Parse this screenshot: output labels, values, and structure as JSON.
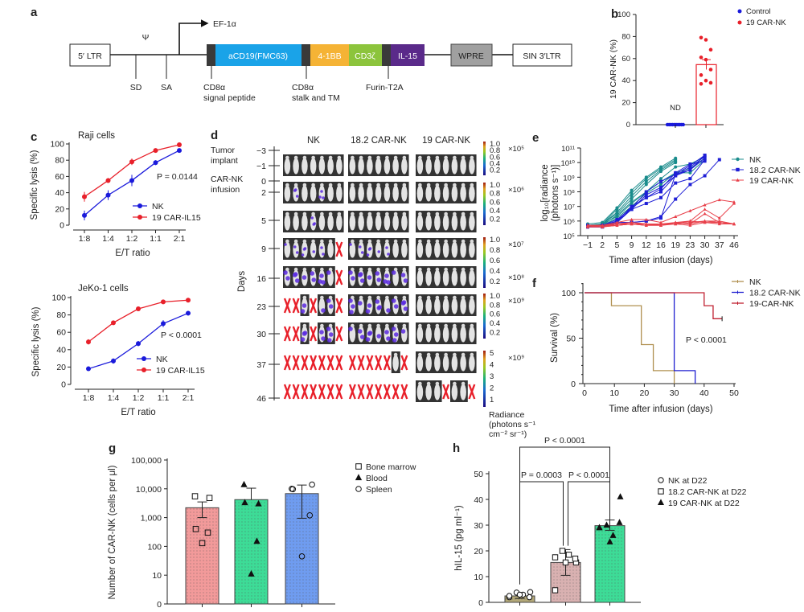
{
  "panel_labels": {
    "a": "a",
    "b": "b",
    "c": "c",
    "d": "d",
    "e": "e",
    "f": "f",
    "g": "g",
    "h": "h"
  },
  "construct": {
    "ltr5": "5′ LTR",
    "psi": "Ψ",
    "promoter": "EF-1α",
    "sd": "SD",
    "sa": "SA",
    "cd19": "aCD19(FMC63)",
    "bb": "4-1BB",
    "cd3z": "CD3ζ",
    "il15": "IL-15",
    "wpre": "WPRE",
    "ltr3": "SIN 3′LTR",
    "sig1": "CD8α",
    "sig2": "signal peptide",
    "stalk1": "CD8α",
    "stalk2": "stalk and TM",
    "furin": "Furin-T2A",
    "colors": {
      "cd19": "#1aa3e8",
      "bb": "#f5b335",
      "cd3z": "#8cc43c",
      "il15": "#5a2a8a",
      "dark": "#3a3a3a",
      "wpre": "#a0a0a0"
    }
  },
  "chart_data": [
    {
      "type": "bar",
      "ylabel": "19 CAR-NK (%)",
      "ylim": [
        0,
        100
      ],
      "yticks": [
        "0",
        "20",
        "40",
        "60",
        "80",
        "100"
      ],
      "categories": [
        "Control",
        "19 CAR-NK"
      ],
      "values": [
        0,
        54.5
      ],
      "sem": [
        0,
        4.5
      ],
      "points": [
        [
          0,
          0,
          0,
          0,
          0,
          0,
          0,
          0,
          0,
          0
        ],
        [
          79,
          77,
          68,
          61,
          59,
          50,
          45,
          40,
          38,
          37
        ]
      ],
      "annotation": "ND",
      "legend": [
        {
          "name": "Control",
          "color": "#1a1adb"
        },
        {
          "name": "19 CAR-NK",
          "color": "#e8202a"
        }
      ]
    },
    {
      "type": "line",
      "title": "Raji cells",
      "xlabel": "E/T ratio",
      "ylabel": "Specific lysis (%)",
      "ylim": [
        0,
        100
      ],
      "yticks": [
        "0",
        "20",
        "40",
        "60",
        "80",
        "100"
      ],
      "x": [
        "1:8",
        "1:4",
        "1:2",
        "1:1",
        "2:1"
      ],
      "series": [
        {
          "name": "NK",
          "color": "#1a1adb",
          "values": [
            12,
            37,
            55,
            77,
            92
          ],
          "err": [
            6,
            6,
            7,
            3,
            1
          ]
        },
        {
          "name": "19 CAR-IL15",
          "color": "#e8202a",
          "values": [
            35,
            55,
            78,
            92,
            99
          ],
          "err": [
            6,
            3,
            4,
            2,
            1
          ]
        }
      ],
      "annotation": "P = 0.0144"
    },
    {
      "type": "line",
      "title": "JeKo-1 cells",
      "xlabel": "E/T ratio",
      "ylabel": "Specific lysis (%)",
      "ylim": [
        0,
        100
      ],
      "yticks": [
        "0",
        "20",
        "40",
        "60",
        "80",
        "100"
      ],
      "x": [
        "1:8",
        "1:4",
        "1:2",
        "1:1",
        "2:1"
      ],
      "series": [
        {
          "name": "NK",
          "color": "#1a1adb",
          "values": [
            18,
            27,
            47,
            70,
            82
          ],
          "err": [
            2,
            3,
            3,
            4,
            2
          ]
        },
        {
          "name": "19 CAR-IL15",
          "color": "#e8202a",
          "values": [
            49,
            71,
            87,
            95,
            97
          ],
          "err": [
            3,
            1,
            1,
            1,
            1
          ]
        }
      ],
      "annotation": "P < 0.0001"
    },
    {
      "type": "table",
      "groups": [
        "NK",
        "18.2 CAR-NK",
        "19 CAR-NK"
      ],
      "ylabel": "Days",
      "axis_ticks": [
        "−3",
        "−1",
        "0",
        "2",
        "5",
        "9",
        "16",
        "23",
        "30",
        "37",
        "46"
      ],
      "event_labels": [
        [
          "Tumor",
          "implant"
        ],
        [
          "CAR-NK",
          "infusion"
        ]
      ],
      "legend_key": {
        "m": "mouse imaged, no signal",
        "t": "mouse with tumor signal",
        "x": "dead"
      },
      "rows": [
        {
          "day": "−1",
          "cells": [
            "mmmmmmm",
            "mmmmmmm",
            "mmmmmmm"
          ]
        },
        {
          "day": "2",
          "cells": [
            "mtmmtmm",
            "mmmmmmm",
            "mmmmmmm"
          ]
        },
        {
          "day": "5",
          "cells": [
            "mmmtmmm",
            "mmmmmmm",
            "mmmmmmm"
          ]
        },
        {
          "day": "9",
          "cells": [
            "tttttmx",
            "tttttmm",
            "mmmmmmm"
          ]
        },
        {
          "day": "16",
          "cells": [
            "ttttttx",
            "ttttttt",
            "mmmmmmm"
          ]
        },
        {
          "day": "23",
          "cells": [
            "xxtxttx",
            "ttttttt",
            "mmmmmmm"
          ]
        },
        {
          "day": "30",
          "cells": [
            "xxtxttx",
            "ttttttt",
            "mmmmmmm"
          ]
        },
        {
          "day": "37",
          "cells": [
            "xxxxxxx",
            "xxxxxmx",
            "mmmmmmm"
          ]
        },
        {
          "day": "46",
          "cells": [
            "xxxxxxx",
            "xxxxxxx",
            "mmmxmmx"
          ]
        }
      ],
      "colorbars": [
        {
          "ticks": [
            "1.0",
            "0.8",
            "0.6",
            "0.4",
            "0.2"
          ],
          "scale": [
            "×10⁵"
          ]
        },
        {
          "ticks": [
            "1.0",
            "0.8",
            "0.6",
            "0.4",
            "0.2"
          ],
          "scale": [
            "×10⁶"
          ]
        },
        {
          "ticks": [
            "1.0",
            "0.8",
            "0.6",
            "0.4",
            "0.2"
          ],
          "scale": [
            "×10⁷",
            "×10⁸"
          ]
        },
        {
          "ticks": [
            "1.0",
            "0.8",
            "0.6",
            "0.4",
            "0.2"
          ],
          "scale": [
            "×10⁹"
          ]
        },
        {
          "ticks": [
            "5",
            "4",
            "3",
            "2",
            "1"
          ],
          "scale": [
            "×10⁹"
          ]
        }
      ],
      "colorbar_label": [
        "Radiance",
        "(photons s⁻¹",
        "cm⁻² sr⁻¹)"
      ],
      "colors": {
        "dead": "#e8202a",
        "tumor": "#5a2ae0"
      }
    },
    {
      "type": "line",
      "xlabel": "Time after infusion (days)",
      "ylabel": [
        "log₁₀[radiance",
        "(photons s⁻¹)]"
      ],
      "x": [
        "−1",
        "2",
        "5",
        "9",
        "12",
        "16",
        "19",
        "23",
        "30",
        "37",
        "46"
      ],
      "ylim_log10": [
        5,
        11
      ],
      "yticks": [
        "10⁵",
        "10⁶",
        "10⁷",
        "10⁸",
        "10⁹",
        "10¹⁰",
        "10¹¹"
      ],
      "series": [
        {
          "name": "NK",
          "color": "#1a8c8c",
          "marker": "circle",
          "mice": [
            [
              5.8,
              5.9,
              6.9,
              8.1,
              9.0,
              9.7,
              10.3
            ],
            [
              5.7,
              5.8,
              6.8,
              7.9,
              8.9,
              9.6,
              10.2
            ],
            [
              5.7,
              5.8,
              6.6,
              7.7,
              8.7,
              9.5,
              10.1
            ],
            [
              5.6,
              5.7,
              6.4,
              7.3,
              8.0,
              8.9,
              9.7,
              9.9,
              10.4
            ],
            [
              5.6,
              5.8,
              6.3,
              7.2,
              8.0,
              8.7,
              9.3,
              9.6,
              10.3
            ],
            [
              5.7,
              5.7,
              6.2,
              7.0,
              7.9,
              8.5,
              9.3,
              9.3,
              10.2
            ],
            [
              5.6,
              5.8,
              6.5,
              7.5,
              8.5,
              9.4,
              10.0
            ]
          ]
        },
        {
          "name": "18.2 CAR-NK",
          "color": "#1f1fd6",
          "marker": "square",
          "mice": [
            [
              5.7,
              5.7,
              6.1,
              6.9,
              8.0,
              8.7,
              9.2,
              9.8,
              10.5
            ],
            [
              5.6,
              5.6,
              6.0,
              6.8,
              7.8,
              8.3,
              9.1,
              9.7,
              10.4
            ],
            [
              5.6,
              5.7,
              6.0,
              7.0,
              7.6,
              8.0,
              9.1,
              9.5,
              10.3
            ],
            [
              5.6,
              5.6,
              5.9,
              6.8,
              7.2,
              7.6,
              8.6,
              8.9,
              10.2
            ],
            [
              5.6,
              5.6,
              5.9,
              6.9,
              7.6,
              8.2,
              9.3,
              9.9,
              10.1
            ],
            [
              5.6,
              5.7,
              5.9,
              5.9,
              6.0,
              6.3,
              7.5,
              8.5,
              9.1,
              10.2
            ],
            [
              5.6,
              5.6,
              5.9,
              5.9,
              6.0,
              6.2,
              9.2,
              9.5,
              10.5
            ]
          ]
        },
        {
          "name": "19 CAR-NK",
          "color": "#e8404a",
          "marker": "triangle",
          "mice": [
            [
              5.7,
              5.7,
              5.9,
              6.1,
              6.1,
              5.9,
              6.3,
              6.7,
              7.1,
              7.45,
              7.3
            ],
            [
              5.7,
              5.7,
              5.8,
              5.9,
              5.8,
              5.8,
              5.9,
              6.0,
              6.8,
              6.2,
              7.2
            ],
            [
              5.7,
              5.6,
              5.8,
              5.9,
              5.8,
              5.7,
              5.9,
              5.8,
              6.5,
              5.9,
              5.8
            ],
            [
              5.6,
              5.6,
              5.8,
              5.8,
              5.7,
              5.7,
              5.8,
              5.9,
              6.0,
              6.0,
              5.8
            ],
            [
              5.6,
              5.7,
              5.7,
              5.8,
              5.7,
              5.8,
              5.8,
              5.7,
              5.9,
              5.9,
              5.8
            ],
            [
              5.6,
              5.6,
              5.7,
              5.8,
              5.7,
              5.8,
              5.8,
              6.0,
              5.9,
              5.8,
              5.8
            ],
            [
              5.7,
              5.6,
              5.7,
              5.8,
              5.8,
              5.7,
              5.9,
              5.8,
              6.0,
              5.9,
              5.8
            ]
          ]
        }
      ],
      "legend": "right"
    },
    {
      "type": "line",
      "xlabel": "Time after infusion (days)",
      "ylabel": "Survival (%)",
      "xlim": [
        0,
        50
      ],
      "ylim": [
        0,
        100
      ],
      "xticks": [
        "0",
        "10",
        "20",
        "30",
        "40",
        "50"
      ],
      "yticks": [
        "0",
        "50",
        "100"
      ],
      "series": [
        {
          "name": "NK",
          "color": "#b09050",
          "steps": [
            [
              0,
              100
            ],
            [
              9,
              85.7
            ],
            [
              19,
              42.9
            ],
            [
              23,
              14.3
            ],
            [
              30,
              0
            ]
          ]
        },
        {
          "name": "18.2 CAR-NK",
          "color": "#2020d0",
          "steps": [
            [
              0,
              100
            ],
            [
              30,
              14.3
            ],
            [
              37,
              0
            ]
          ]
        },
        {
          "name": "19-CAR-NK",
          "color": "#c02030",
          "steps": [
            [
              0,
              100
            ],
            [
              40,
              85.7
            ],
            [
              43,
              71.4
            ],
            [
              46,
              71.4
            ]
          ]
        }
      ],
      "annotation": "P < 0.0001",
      "legend": "top-right"
    },
    {
      "type": "bar",
      "ylabel": "Number of CAR-NK (cells per μl)",
      "yscale": "log",
      "yticks": [
        "0",
        "10",
        "100",
        "1,000",
        "10,000",
        "100,000"
      ],
      "categories": [
        "Bone marrow",
        "Blood",
        "Spleen"
      ],
      "values": [
        2200,
        4200,
        6800
      ],
      "err_low": [
        1000,
        4200,
        950
      ],
      "err_high": [
        3500,
        10500,
        13500
      ],
      "points": [
        [
          5500,
          4800,
          400,
          300,
          130
        ],
        [
          14000,
          3000,
          3300,
          150,
          11
        ],
        [
          10000,
          14000,
          9700,
          1200,
          45
        ]
      ],
      "colors": [
        "#f29a9a",
        "#3ddc97",
        "#6f9cf0"
      ],
      "markers": [
        "square",
        "triangle",
        "circle"
      ],
      "legend": "right"
    },
    {
      "type": "bar",
      "ylabel": "hIL-15 (pg ml⁻¹)",
      "ylim": [
        0,
        50
      ],
      "yticks": [
        "0",
        "10",
        "20",
        "30",
        "40",
        "50"
      ],
      "categories": [
        "NK at D22",
        "18.2 CAR-NK at D22",
        "19 CAR-NK at D22"
      ],
      "values": [
        2.5,
        15.5,
        29.8
      ],
      "err_low": [
        1.5,
        10.5,
        28
      ],
      "err_high": [
        3.5,
        20.5,
        32
      ],
      "points": [
        [
          2,
          3.8,
          3,
          3,
          4,
          2,
          2.5
        ],
        [
          17.5,
          20,
          18.5,
          15.5,
          15.5,
          17,
          4.7
        ],
        [
          29,
          30,
          26,
          23.5,
          41,
          31,
          29
        ]
      ],
      "colors": [
        "#b3a878",
        "#d9b1b1",
        "#3ddc97"
      ],
      "markers": [
        "circle",
        "square",
        "triangle"
      ],
      "comparisons": [
        {
          "pair": [
            0,
            2
          ],
          "label": "P < 0.0001"
        },
        {
          "pair": [
            0,
            1
          ],
          "label": "P = 0.0003"
        },
        {
          "pair": [
            1,
            2
          ],
          "label": "P < 0.0001"
        }
      ],
      "legend": "right"
    }
  ]
}
